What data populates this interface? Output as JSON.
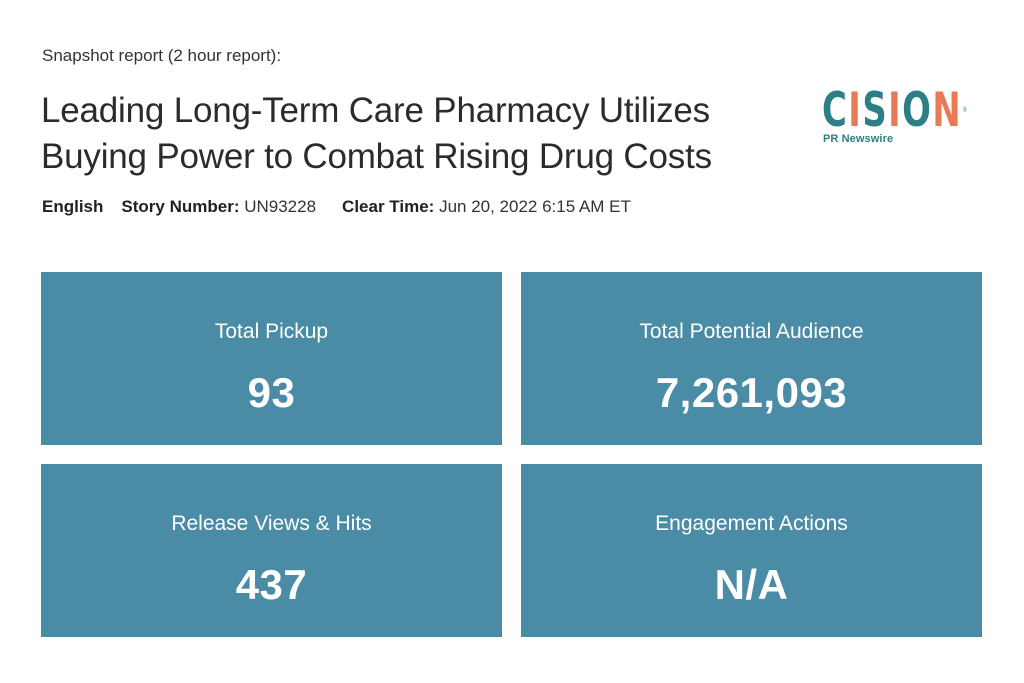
{
  "header": {
    "report_label": "Snapshot report (2 hour report):",
    "title": "Leading Long-Term Care Pharmacy Utilizes Buying Power to Combat Rising Drug Costs"
  },
  "logo": {
    "letters": [
      "C",
      "I",
      "S",
      "I",
      "O",
      "N"
    ],
    "letter_colors": [
      "#2c7f84",
      "#e87b55",
      "#2c7f84",
      "#e87b55",
      "#2c7f84",
      "#e87b55"
    ],
    "registered": "®",
    "subtitle": "PR Newswire"
  },
  "meta": {
    "language": "English",
    "story_number_label": "Story Number:",
    "story_number": "UN93228",
    "clear_time_label": "Clear Time:",
    "clear_time": "Jun 20, 2022 6:15 AM ET"
  },
  "stats": {
    "pickup": {
      "label": "Total Pickup",
      "value": "93"
    },
    "audience": {
      "label": "Total Potential Audience",
      "value": "7,261,093"
    },
    "views": {
      "label": "Release Views & Hits",
      "value": "437"
    },
    "engagement": {
      "label": "Engagement Actions",
      "value": "N/A"
    }
  },
  "colors": {
    "card_background": "#4a8ba6",
    "brand_teal": "#2c7f84",
    "brand_orange": "#e87b55"
  }
}
